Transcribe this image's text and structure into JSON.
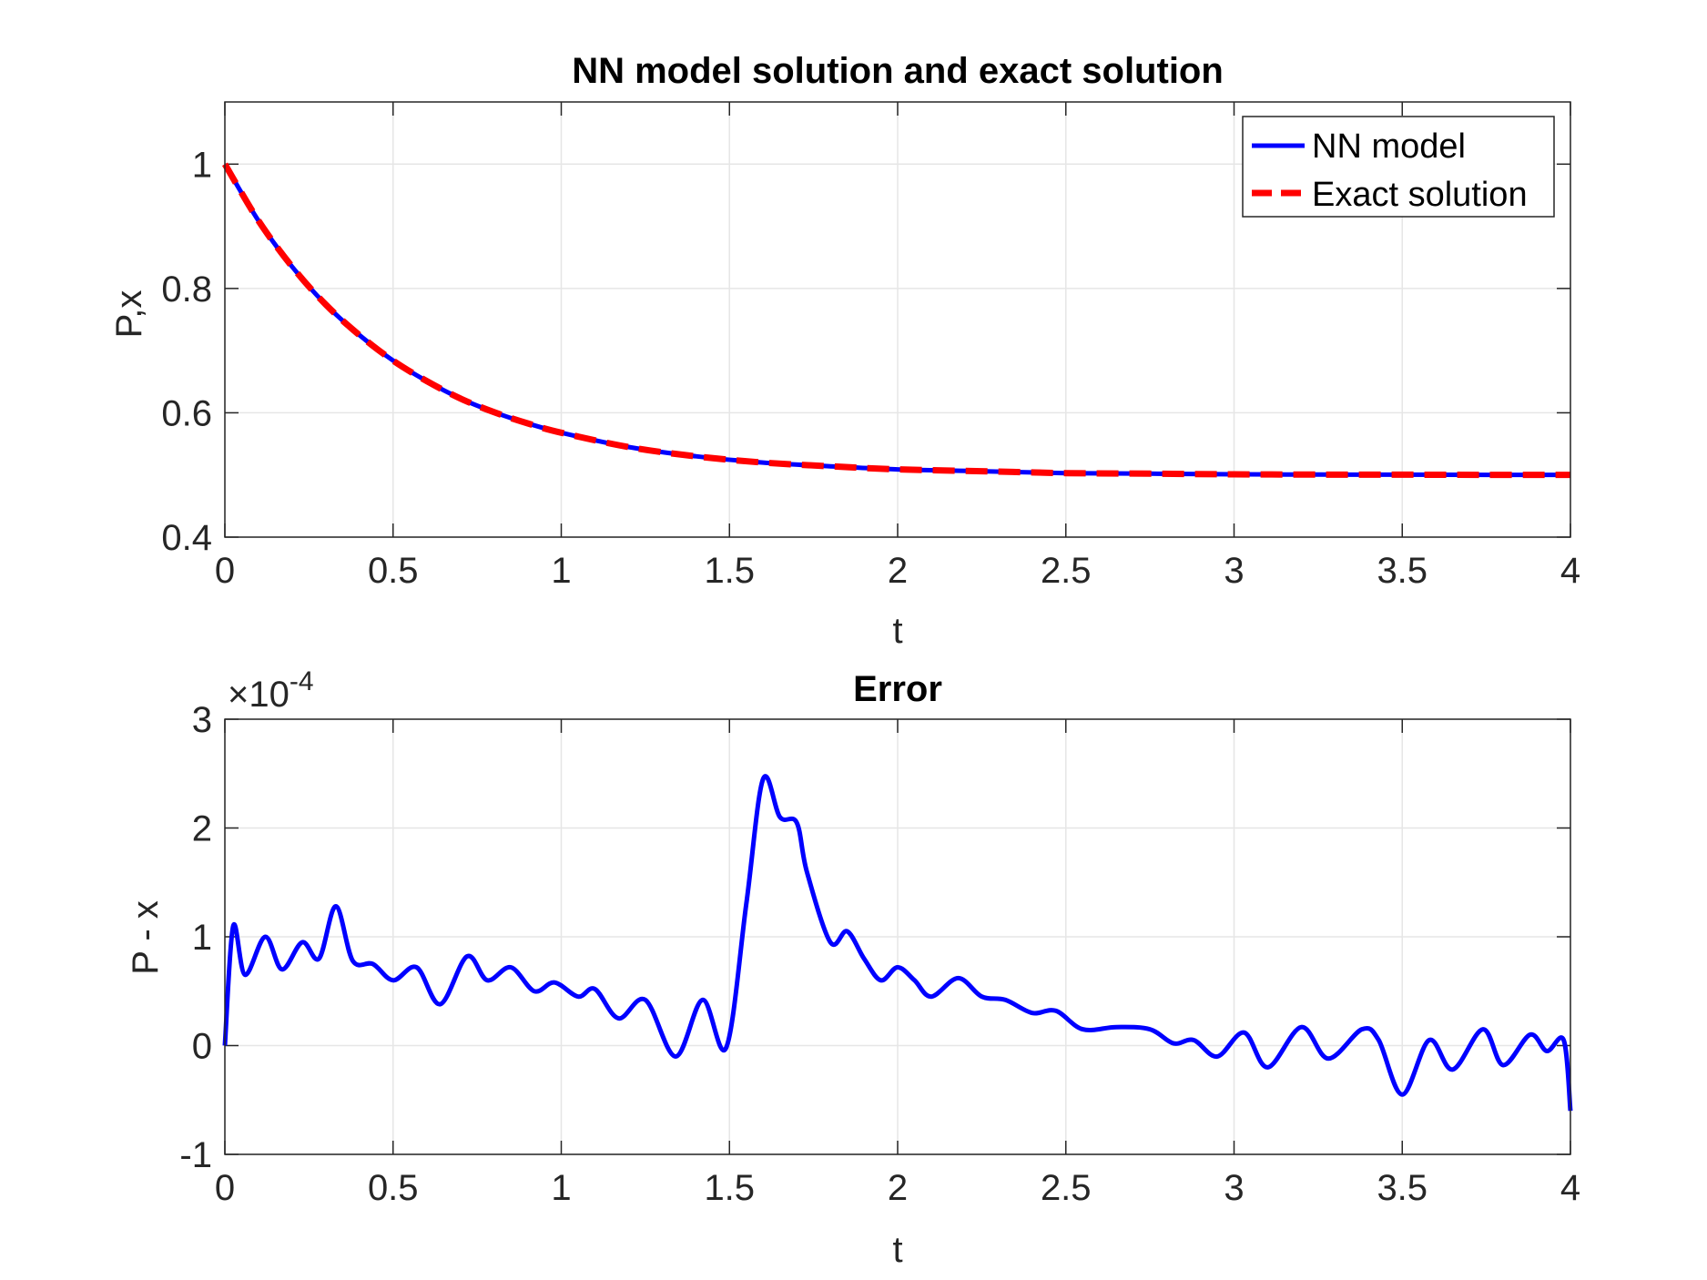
{
  "chart_data": [
    {
      "type": "line",
      "title": "NN model solution and exact solution",
      "xlabel": "t",
      "ylabel": "P,x",
      "xlim": [
        0,
        4
      ],
      "ylim": [
        0.4,
        1.1
      ],
      "xticks": [
        0,
        0.5,
        1,
        1.5,
        2,
        2.5,
        3,
        3.5,
        4
      ],
      "xtick_labels": [
        "0",
        "0.5",
        "1",
        "1.5",
        "2",
        "2.5",
        "3",
        "3.5",
        "4"
      ],
      "yticks": [
        0.4,
        0.6,
        0.8,
        1
      ],
      "ytick_labels": [
        "0.4",
        "0.6",
        "0.8",
        "1"
      ],
      "grid": true,
      "legend_position": "top-right",
      "series": [
        {
          "name": "NN model",
          "color": "#0000ff",
          "style": "solid",
          "x": [
            0,
            0.1,
            0.2,
            0.3,
            0.4,
            0.5,
            0.6,
            0.7,
            0.8,
            0.9,
            1.0,
            1.2,
            1.4,
            1.6,
            1.8,
            2.0,
            2.25,
            2.5,
            2.75,
            3.0,
            3.25,
            3.5,
            3.75,
            4.0
          ],
          "values": [
            1.0,
            0.909,
            0.835,
            0.774,
            0.725,
            0.684,
            0.651,
            0.623,
            0.601,
            0.583,
            0.568,
            0.545,
            0.53,
            0.52,
            0.514,
            0.509,
            0.506,
            0.503,
            0.502,
            0.501,
            0.5006,
            0.5004,
            0.5002,
            0.5001
          ]
        },
        {
          "name": "Exact solution",
          "color": "#ff0000",
          "style": "dashed",
          "x": [
            0,
            0.1,
            0.2,
            0.3,
            0.4,
            0.5,
            0.6,
            0.7,
            0.8,
            0.9,
            1.0,
            1.2,
            1.4,
            1.6,
            1.8,
            2.0,
            2.25,
            2.5,
            2.75,
            3.0,
            3.25,
            3.5,
            3.75,
            4.0
          ],
          "values": [
            1.0,
            0.909,
            0.835,
            0.774,
            0.725,
            0.684,
            0.651,
            0.623,
            0.601,
            0.583,
            0.568,
            0.545,
            0.53,
            0.52,
            0.514,
            0.509,
            0.506,
            0.503,
            0.502,
            0.501,
            0.5006,
            0.5004,
            0.5002,
            0.5001
          ]
        }
      ]
    },
    {
      "type": "line",
      "title": "Error",
      "xlabel": "t",
      "ylabel": "P - x",
      "exponent_base": "×10",
      "exponent_power": "-4",
      "xlim": [
        0,
        4
      ],
      "ylim": [
        -1,
        3
      ],
      "xticks": [
        0,
        0.5,
        1,
        1.5,
        2,
        2.5,
        3,
        3.5,
        4
      ],
      "xtick_labels": [
        "0",
        "0.5",
        "1",
        "1.5",
        "2",
        "2.5",
        "3",
        "3.5",
        "4"
      ],
      "yticks": [
        -1,
        0,
        1,
        2,
        3
      ],
      "ytick_labels": [
        "-1",
        "0",
        "1",
        "2",
        "3"
      ],
      "grid": true,
      "series": [
        {
          "name": "P - x",
          "color": "#0000ff",
          "style": "solid",
          "x": [
            0,
            0.025,
            0.06,
            0.12,
            0.17,
            0.23,
            0.28,
            0.33,
            0.38,
            0.44,
            0.5,
            0.57,
            0.64,
            0.72,
            0.78,
            0.85,
            0.92,
            0.98,
            1.05,
            1.1,
            1.17,
            1.25,
            1.34,
            1.42,
            1.49,
            1.55,
            1.6,
            1.65,
            1.7,
            1.73,
            1.8,
            1.85,
            1.9,
            1.95,
            2.0,
            2.05,
            2.1,
            2.18,
            2.25,
            2.32,
            2.4,
            2.47,
            2.55,
            2.65,
            2.75,
            2.82,
            2.88,
            2.95,
            3.03,
            3.1,
            3.2,
            3.28,
            3.38,
            3.43,
            3.5,
            3.58,
            3.65,
            3.74,
            3.8,
            3.88,
            3.93,
            3.98,
            4.0
          ],
          "values": [
            0.0,
            1.1,
            0.65,
            1.0,
            0.7,
            0.95,
            0.8,
            1.28,
            0.78,
            0.75,
            0.6,
            0.72,
            0.38,
            0.82,
            0.6,
            0.72,
            0.5,
            0.58,
            0.45,
            0.52,
            0.25,
            0.42,
            -0.1,
            0.42,
            -0.02,
            1.3,
            2.45,
            2.1,
            2.05,
            1.6,
            0.95,
            1.05,
            0.8,
            0.6,
            0.72,
            0.6,
            0.45,
            0.62,
            0.45,
            0.42,
            0.3,
            0.32,
            0.15,
            0.17,
            0.15,
            0.02,
            0.05,
            -0.1,
            0.12,
            -0.2,
            0.17,
            -0.12,
            0.15,
            0.05,
            -0.45,
            0.05,
            -0.22,
            0.15,
            -0.18,
            0.1,
            -0.05,
            0.05,
            -0.6
          ]
        }
      ]
    }
  ]
}
